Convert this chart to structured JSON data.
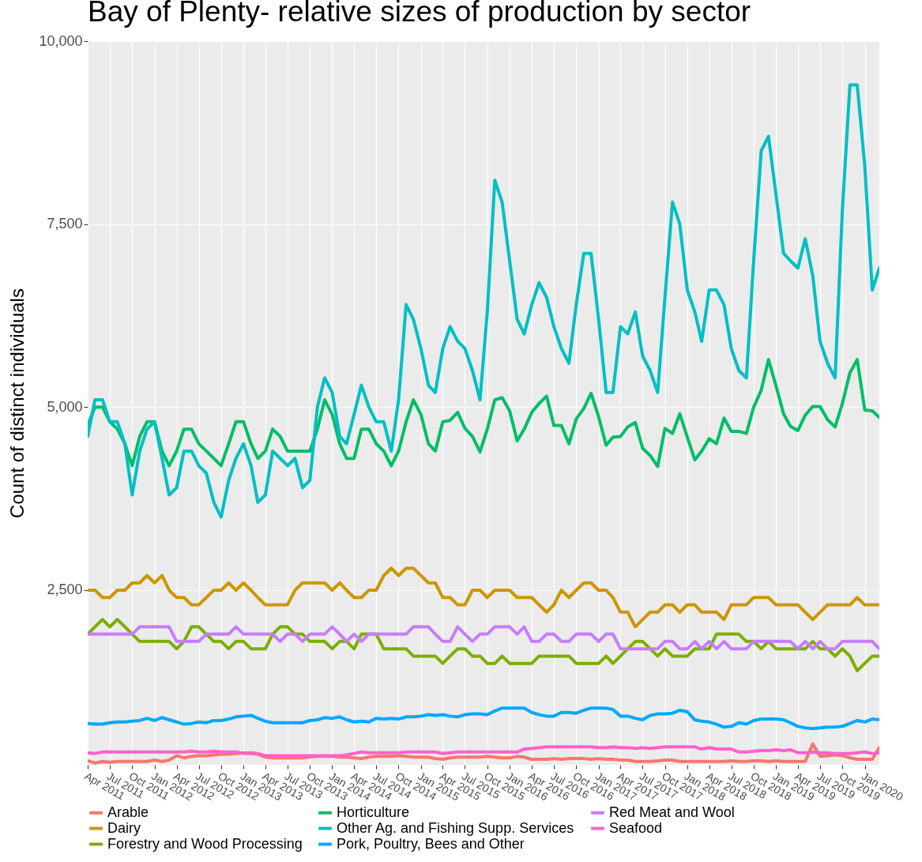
{
  "chart_data": {
    "type": "line",
    "title": "Bay of Plenty- relative sizes of production by sector",
    "ylabel": "Count of distinct individuals",
    "x": [
      "2011-04",
      "2011-05",
      "2011-06",
      "2011-07",
      "2011-08",
      "2011-09",
      "2011-10",
      "2011-11",
      "2011-12",
      "2012-01",
      "2012-02",
      "2012-03",
      "2012-04",
      "2012-05",
      "2012-06",
      "2012-07",
      "2012-08",
      "2012-09",
      "2012-10",
      "2012-11",
      "2012-12",
      "2013-01",
      "2013-02",
      "2013-03",
      "2013-04",
      "2013-05",
      "2013-06",
      "2013-07",
      "2013-08",
      "2013-09",
      "2013-10",
      "2013-11",
      "2013-12",
      "2014-01",
      "2014-02",
      "2014-03",
      "2014-04",
      "2014-05",
      "2014-06",
      "2014-07",
      "2014-08",
      "2014-09",
      "2014-10",
      "2014-11",
      "2014-12",
      "2015-01",
      "2015-02",
      "2015-03",
      "2015-04",
      "2015-05",
      "2015-06",
      "2015-07",
      "2015-08",
      "2015-09",
      "2015-10",
      "2015-11",
      "2015-12",
      "2016-01",
      "2016-02",
      "2016-03",
      "2016-04",
      "2016-05",
      "2016-06",
      "2016-07",
      "2016-08",
      "2016-09",
      "2016-10",
      "2016-11",
      "2016-12",
      "2017-01",
      "2017-02",
      "2017-03",
      "2017-04",
      "2017-05",
      "2017-06",
      "2017-07",
      "2017-08",
      "2017-09",
      "2017-10",
      "2017-11",
      "2017-12",
      "2018-01",
      "2018-02",
      "2018-03",
      "2018-04",
      "2018-05",
      "2018-06",
      "2018-07",
      "2018-08",
      "2018-09",
      "2018-10",
      "2018-11",
      "2018-12",
      "2019-01",
      "2019-02",
      "2019-03",
      "2019-04",
      "2019-05",
      "2019-06",
      "2019-07",
      "2019-08",
      "2019-09",
      "2019-10",
      "2019-11",
      "2019-12",
      "2020-01",
      "2020-02",
      "2020-03"
    ],
    "series": [
      {
        "name": "Arable",
        "color": "#f8766d",
        "values": [
          170,
          140,
          160,
          150,
          160,
          160,
          160,
          160,
          160,
          180,
          160,
          180,
          240,
          210,
          230,
          240,
          240,
          250,
          260,
          260,
          270,
          280,
          270,
          260,
          220,
          210,
          210,
          210,
          210,
          210,
          220,
          230,
          230,
          230,
          220,
          220,
          210,
          200,
          220,
          230,
          230,
          230,
          240,
          230,
          220,
          220,
          220,
          200,
          190,
          210,
          220,
          220,
          220,
          220,
          230,
          220,
          210,
          210,
          230,
          220,
          190,
          190,
          190,
          200,
          190,
          200,
          200,
          200,
          190,
          200,
          190,
          190,
          180,
          180,
          160,
          160,
          160,
          170,
          180,
          180,
          160,
          160,
          160,
          160,
          160,
          160,
          160,
          170,
          160,
          160,
          170,
          170,
          160,
          170,
          160,
          160,
          160,
          160,
          400,
          230,
          240,
          250,
          240,
          210,
          190,
          190,
          190,
          350
        ]
      },
      {
        "name": "Dairy",
        "color": "#cd9600",
        "values": [
          2500,
          2500,
          2400,
          2400,
          2500,
          2500,
          2600,
          2600,
          2700,
          2600,
          2700,
          2500,
          2400,
          2400,
          2300,
          2300,
          2400,
          2500,
          2500,
          2600,
          2500,
          2600,
          2500,
          2400,
          2300,
          2300,
          2300,
          2300,
          2500,
          2600,
          2600,
          2600,
          2600,
          2500,
          2600,
          2500,
          2400,
          2400,
          2500,
          2500,
          2700,
          2800,
          2700,
          2800,
          2800,
          2700,
          2600,
          2600,
          2400,
          2400,
          2300,
          2300,
          2500,
          2500,
          2400,
          2500,
          2500,
          2500,
          2400,
          2400,
          2400,
          2300,
          2200,
          2300,
          2500,
          2400,
          2500,
          2600,
          2600,
          2500,
          2500,
          2400,
          2200,
          2200,
          2000,
          2100,
          2200,
          2200,
          2300,
          2300,
          2200,
          2300,
          2300,
          2200,
          2200,
          2200,
          2100,
          2300,
          2300,
          2300,
          2400,
          2400,
          2400,
          2300,
          2300,
          2300,
          2300,
          2200,
          2100,
          2200,
          2300,
          2300,
          2300,
          2300,
          2400,
          2300,
          2300,
          2300
        ]
      },
      {
        "name": "Forestry and Wood Processing",
        "color": "#7cae00",
        "values": [
          1900,
          2000,
          2100,
          2000,
          2100,
          2000,
          1900,
          1800,
          1800,
          1800,
          1800,
          1800,
          1700,
          1800,
          2000,
          2000,
          1900,
          1800,
          1800,
          1700,
          1800,
          1800,
          1700,
          1700,
          1700,
          1900,
          2000,
          2000,
          1900,
          1900,
          1800,
          1800,
          1800,
          1700,
          1800,
          1800,
          1700,
          1900,
          1900,
          1900,
          1700,
          1700,
          1700,
          1700,
          1600,
          1600,
          1600,
          1600,
          1500,
          1600,
          1700,
          1700,
          1600,
          1600,
          1500,
          1500,
          1600,
          1500,
          1500,
          1500,
          1500,
          1600,
          1600,
          1600,
          1600,
          1600,
          1500,
          1500,
          1500,
          1500,
          1600,
          1500,
          1600,
          1700,
          1800,
          1800,
          1700,
          1600,
          1700,
          1600,
          1600,
          1600,
          1700,
          1700,
          1700,
          1900,
          1900,
          1900,
          1900,
          1800,
          1800,
          1700,
          1800,
          1700,
          1700,
          1700,
          1700,
          1700,
          1800,
          1700,
          1700,
          1600,
          1700,
          1600,
          1400,
          1500,
          1600,
          1600
        ]
      },
      {
        "name": "Horticulture",
        "color": "#00be67",
        "values": [
          4750,
          5000,
          5000,
          4800,
          4700,
          4500,
          4200,
          4600,
          4800,
          4800,
          4400,
          4200,
          4400,
          4700,
          4700,
          4500,
          4400,
          4300,
          4200,
          4500,
          4800,
          4800,
          4500,
          4300,
          4400,
          4700,
          4600,
          4400,
          4400,
          4400,
          4400,
          4700,
          5100,
          4900,
          4500,
          4300,
          4300,
          4700,
          4700,
          4500,
          4400,
          4200,
          4400,
          4800,
          5100,
          4900,
          4500,
          4400,
          4800,
          4820,
          4930,
          4710,
          4600,
          4390,
          4700,
          5100,
          5130,
          4950,
          4540,
          4700,
          4930,
          5050,
          5150,
          4750,
          4750,
          4500,
          4840,
          4980,
          5190,
          4870,
          4480,
          4590,
          4600,
          4730,
          4790,
          4440,
          4340,
          4190,
          4710,
          4640,
          4910,
          4590,
          4280,
          4400,
          4570,
          4500,
          4850,
          4670,
          4670,
          4640,
          5000,
          5230,
          5650,
          5290,
          4910,
          4740,
          4680,
          4890,
          5010,
          5010,
          4830,
          4730,
          5050,
          5470,
          5650,
          4960,
          4950,
          4860
        ]
      },
      {
        "name": "Other Ag. and Fishing Supp. Services",
        "color": "#00bfc4",
        "values": [
          4600,
          5100,
          5100,
          4800,
          4800,
          4500,
          3800,
          4400,
          4700,
          4800,
          4300,
          3800,
          3900,
          4400,
          4400,
          4200,
          4100,
          3700,
          3500,
          4000,
          4300,
          4500,
          4200,
          3700,
          3800,
          4400,
          4300,
          4200,
          4300,
          3900,
          4000,
          5000,
          5400,
          5200,
          4600,
          4500,
          4900,
          5300,
          5000,
          4800,
          4800,
          4400,
          5100,
          6400,
          6200,
          5800,
          5300,
          5200,
          5800,
          6100,
          5900,
          5800,
          5500,
          5100,
          6300,
          8100,
          7800,
          7000,
          6200,
          6000,
          6400,
          6700,
          6500,
          6100,
          5800,
          5600,
          6400,
          7100,
          7100,
          6200,
          5200,
          5200,
          6100,
          6000,
          6300,
          5700,
          5500,
          5200,
          6500,
          7800,
          7500,
          6600,
          6300,
          5900,
          6600,
          6600,
          6400,
          5800,
          5500,
          5400,
          7000,
          8500,
          8700,
          7900,
          7100,
          7000,
          6900,
          7300,
          6800,
          5900,
          5600,
          5400,
          7700,
          9400,
          9400,
          8300,
          6600,
          6900
        ]
      },
      {
        "name": "Pork, Poultry, Bees and Other",
        "color": "#00a9ff",
        "values": [
          680,
          670,
          670,
          690,
          700,
          700,
          710,
          720,
          750,
          720,
          760,
          730,
          700,
          670,
          680,
          700,
          690,
          720,
          720,
          740,
          770,
          780,
          790,
          750,
          710,
          690,
          690,
          690,
          690,
          690,
          720,
          730,
          760,
          750,
          770,
          730,
          700,
          710,
          700,
          750,
          740,
          750,
          740,
          770,
          770,
          780,
          800,
          790,
          800,
          780,
          770,
          800,
          810,
          810,
          800,
          850,
          890,
          890,
          890,
          890,
          830,
          800,
          780,
          780,
          830,
          830,
          820,
          860,
          890,
          890,
          890,
          870,
          780,
          780,
          750,
          730,
          790,
          810,
          810,
          820,
          860,
          840,
          730,
          710,
          700,
          670,
          630,
          640,
          690,
          670,
          720,
          740,
          740,
          740,
          730,
          690,
          640,
          620,
          610,
          620,
          630,
          630,
          640,
          680,
          720,
          700,
          740,
          730
        ]
      },
      {
        "name": "Red Meat and Wool",
        "color": "#c77cff",
        "values": [
          1900,
          1900,
          1900,
          1900,
          1900,
          1900,
          1900,
          2000,
          2000,
          2000,
          2000,
          2000,
          1800,
          1800,
          1800,
          1800,
          1900,
          1900,
          1900,
          1900,
          2000,
          1900,
          1900,
          1900,
          1900,
          1900,
          1800,
          1900,
          1900,
          1800,
          1900,
          1900,
          1900,
          2000,
          1900,
          1800,
          1900,
          1800,
          1900,
          1900,
          1900,
          1900,
          1900,
          1900,
          2000,
          2000,
          2000,
          1900,
          1800,
          1800,
          2000,
          1900,
          1800,
          1900,
          1900,
          2000,
          2000,
          2000,
          1900,
          2000,
          1800,
          1800,
          1900,
          1900,
          1800,
          1800,
          1900,
          1900,
          1900,
          1800,
          1900,
          1900,
          1700,
          1700,
          1700,
          1700,
          1700,
          1700,
          1800,
          1800,
          1700,
          1700,
          1800,
          1700,
          1800,
          1700,
          1800,
          1700,
          1700,
          1700,
          1800,
          1800,
          1800,
          1800,
          1800,
          1800,
          1700,
          1800,
          1700,
          1800,
          1700,
          1700,
          1800,
          1800,
          1800,
          1800,
          1800,
          1700
        ]
      },
      {
        "name": "Seafood",
        "color": "#ff61cc",
        "values": [
          280,
          270,
          290,
          290,
          290,
          290,
          290,
          290,
          290,
          290,
          290,
          290,
          290,
          290,
          300,
          290,
          290,
          300,
          290,
          290,
          290,
          270,
          280,
          270,
          240,
          240,
          240,
          240,
          240,
          240,
          240,
          240,
          240,
          240,
          240,
          250,
          270,
          290,
          280,
          280,
          280,
          280,
          280,
          290,
          290,
          290,
          290,
          290,
          270,
          280,
          290,
          290,
          290,
          290,
          290,
          290,
          290,
          290,
          290,
          330,
          340,
          350,
          360,
          360,
          360,
          360,
          360,
          360,
          360,
          350,
          350,
          360,
          350,
          350,
          340,
          350,
          340,
          350,
          360,
          360,
          360,
          360,
          360,
          330,
          350,
          330,
          330,
          330,
          290,
          290,
          300,
          310,
          310,
          320,
          310,
          320,
          280,
          280,
          290,
          280,
          280,
          270,
          270,
          270,
          280,
          290,
          270,
          280
        ]
      }
    ],
    "xlim": [
      "2011-04",
      "2020-03"
    ],
    "xticks": [
      {
        "value": "2011-04",
        "label": "Apr 2011"
      },
      {
        "value": "2011-07",
        "label": "Jul 2011"
      },
      {
        "value": "2011-10",
        "label": "Oct 2011"
      },
      {
        "value": "2012-01",
        "label": "Jan 2012"
      },
      {
        "value": "2012-04",
        "label": "Apr 2012"
      },
      {
        "value": "2012-07",
        "label": "Jul 2012"
      },
      {
        "value": "2012-10",
        "label": "Oct 2012"
      },
      {
        "value": "2013-01",
        "label": "Jan 2013"
      },
      {
        "value": "2013-04",
        "label": "Apr 2013"
      },
      {
        "value": "2013-07",
        "label": "Jul 2013"
      },
      {
        "value": "2013-10",
        "label": "Oct 2013"
      },
      {
        "value": "2014-01",
        "label": "Jan 2014"
      },
      {
        "value": "2014-04",
        "label": "Apr 2014"
      },
      {
        "value": "2014-07",
        "label": "Jul 2014"
      },
      {
        "value": "2014-10",
        "label": "Oct 2014"
      },
      {
        "value": "2015-01",
        "label": "Jan 2015"
      },
      {
        "value": "2015-04",
        "label": "Apr 2015"
      },
      {
        "value": "2015-07",
        "label": "Jul 2015"
      },
      {
        "value": "2015-10",
        "label": "Oct 2015"
      },
      {
        "value": "2016-01",
        "label": "Jan 2016"
      },
      {
        "value": "2016-04",
        "label": "Apr 2016"
      },
      {
        "value": "2016-07",
        "label": "Jul 2016"
      },
      {
        "value": "2016-10",
        "label": "Oct 2016"
      },
      {
        "value": "2017-01",
        "label": "Jan 2017"
      },
      {
        "value": "2017-04",
        "label": "Apr 2017"
      },
      {
        "value": "2017-07",
        "label": "Jul 2017"
      },
      {
        "value": "2017-10",
        "label": "Oct 2017"
      },
      {
        "value": "2018-01",
        "label": "Jan 2018"
      },
      {
        "value": "2018-04",
        "label": "Apr 2018"
      },
      {
        "value": "2018-07",
        "label": "Jul 2018"
      },
      {
        "value": "2018-10",
        "label": "Oct 2018"
      },
      {
        "value": "2019-01",
        "label": "Jan 2019"
      },
      {
        "value": "2019-04",
        "label": "Apr 2019"
      },
      {
        "value": "2019-07",
        "label": "Jul 2019"
      },
      {
        "value": "2019-10",
        "label": "Oct 2019"
      },
      {
        "value": "2020-01",
        "label": "Jan 2020"
      }
    ],
    "ylim": [
      115,
      10000
    ],
    "yticks": [
      {
        "value": 2500,
        "label": "2,500"
      },
      {
        "value": 5000,
        "label": "5,000"
      },
      {
        "value": 7500,
        "label": "7,500"
      },
      {
        "value": 10000,
        "label": "10,000"
      }
    ],
    "grid": true,
    "legend": "bottom",
    "marker": "none",
    "line_style": "solid"
  }
}
